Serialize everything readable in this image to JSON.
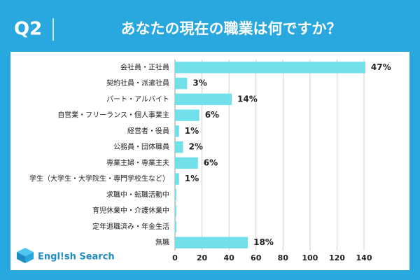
{
  "header": {
    "label": "Q2"
  },
  "logo": "Engl!sh Search",
  "chart_data": {
    "type": "hbar",
    "title": "あなたの現在の職業は何ですか？",
    "categories": [
      "会社員・正社員",
      "契約社員・派遣社員",
      "パート・アルバイト",
      "自営業・フリーランス・個人事業主",
      "経営者・役員",
      "公務員・団体職員",
      "専業主婦・専業主夫",
      "学生（大学生・大学院生・専門学校生など）",
      "求職中・転職活動中",
      "育児休業中・介護休業中",
      "定年退職済み・年金生活",
      "無職"
    ],
    "values": [
      141,
      9,
      42,
      18,
      3,
      6,
      17,
      3,
      1,
      1,
      1,
      54
    ],
    "value_labels": [
      "47%",
      "3%",
      "14%",
      "6%",
      "1%",
      "2%",
      "6%",
      "1%",
      null,
      null,
      null,
      "18%"
    ],
    "color": "#72e0ea",
    "xlim": [
      0,
      140
    ],
    "xticks": [
      0,
      20,
      40,
      60,
      80,
      100,
      120,
      140
    ],
    "grid": true
  }
}
